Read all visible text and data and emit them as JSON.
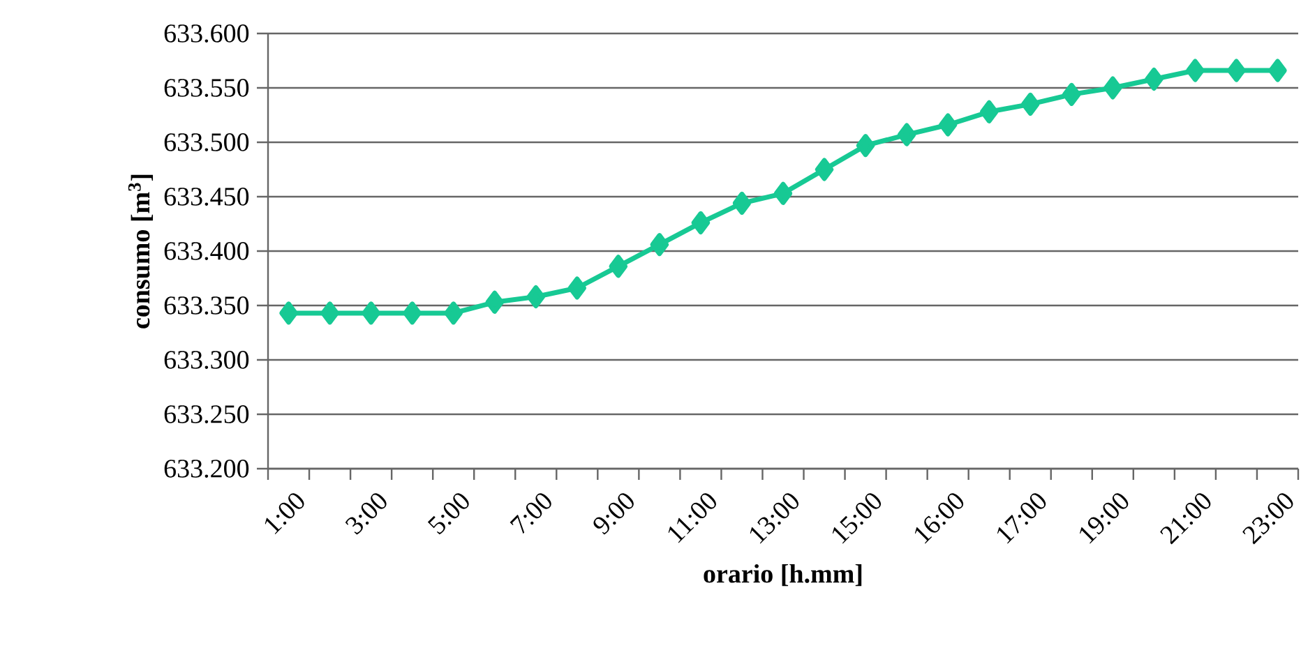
{
  "chart_data": {
    "type": "line",
    "xlabel": "orario [h.mm]",
    "ylabel": "consumo [m$^{3}$]",
    "categories": [
      "1:00",
      null,
      "3:00",
      null,
      "5:00",
      null,
      "7:00",
      null,
      "9:00",
      null,
      "11:00",
      null,
      "13:00",
      null,
      "15:00",
      null,
      "16:00",
      null,
      "17:00",
      null,
      "19:00",
      null,
      "21:00",
      null,
      "23:00"
    ],
    "series": [
      {
        "color": "#17c994",
        "values": [
          633343,
          633343,
          633343,
          633343,
          633343,
          633353,
          633358,
          633366,
          633386,
          633406,
          633426,
          633444,
          633453,
          633475,
          633497,
          633507,
          633516,
          633528,
          633535,
          633544,
          633550,
          633558,
          633566,
          633566,
          633566
        ]
      }
    ],
    "ylim": [
      633200,
      633600
    ],
    "yticks": [
      {
        "value": 633200,
        "label": "633.200"
      },
      {
        "value": 633250,
        "label": "633.250"
      },
      {
        "value": 633300,
        "label": "633.300"
      },
      {
        "value": 633350,
        "label": "633.350"
      },
      {
        "value": 633400,
        "label": "633.400"
      },
      {
        "value": 633450,
        "label": "633.450"
      },
      {
        "value": 633500,
        "label": "633.500"
      },
      {
        "value": 633550,
        "label": "633.550"
      },
      {
        "value": 633600,
        "label": "633.600"
      }
    ],
    "grid": "y",
    "marker": "diamond",
    "line_style": "solid"
  }
}
